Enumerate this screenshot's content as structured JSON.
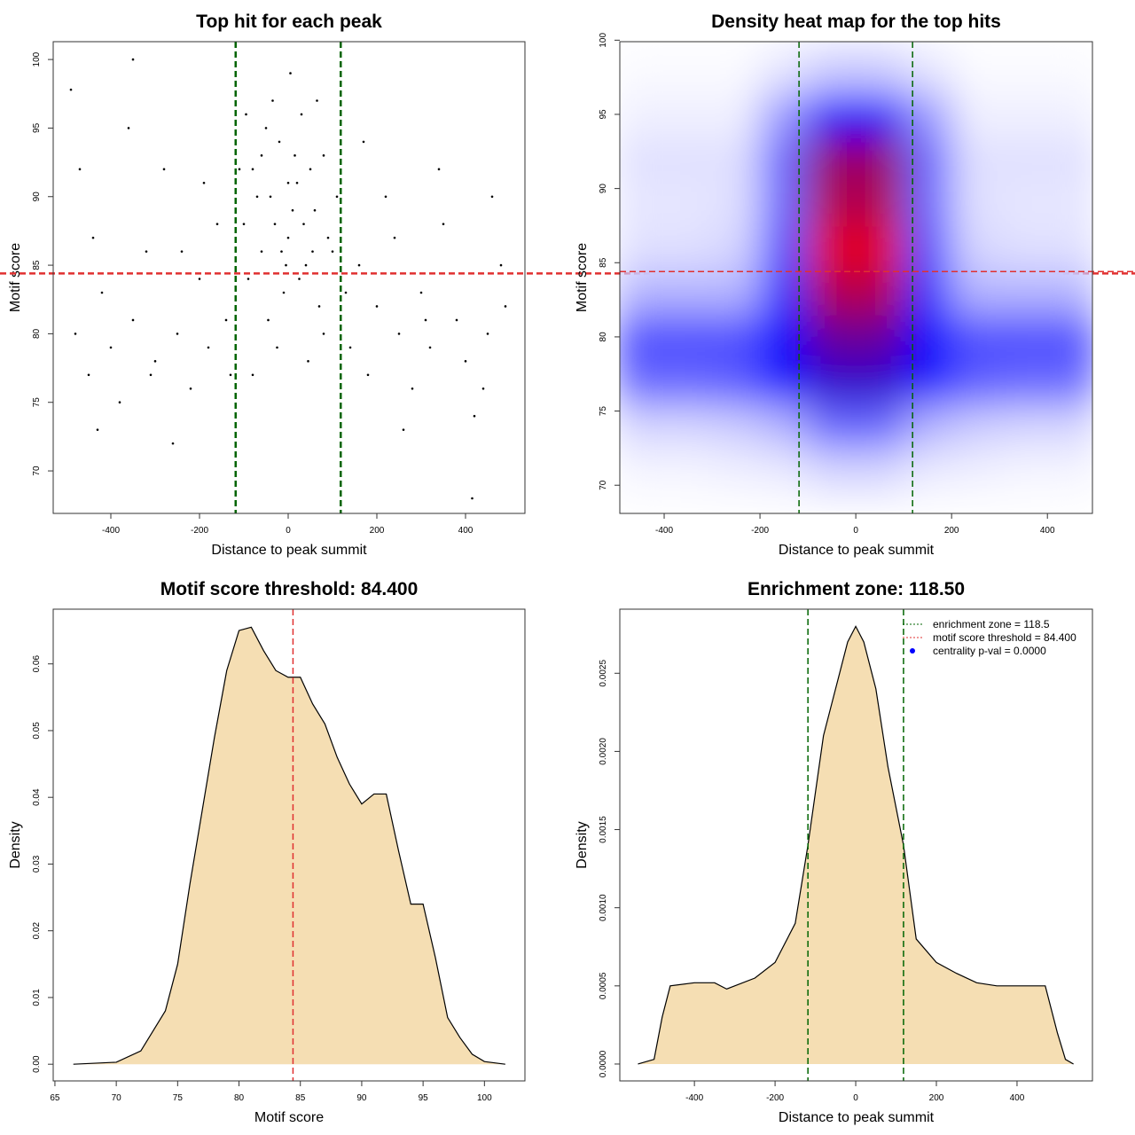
{
  "chart_data": [
    {
      "type": "scatter",
      "title": "Top hit for each peak",
      "xlabel": "Distance to peak summit",
      "ylabel": "Motif score",
      "x": [
        -100,
        -80,
        -60,
        -40,
        -20,
        0,
        20,
        40,
        60,
        80,
        100,
        -90,
        -50,
        -10,
        30,
        70,
        110,
        -110,
        -30,
        10,
        50,
        90,
        -70,
        -15,
        15,
        35,
        -45,
        65,
        -95,
        5,
        -25,
        45,
        0,
        -5,
        25,
        -60,
        80,
        -80,
        55,
        -35,
        -480,
        -450,
        -420,
        -400,
        -380,
        -350,
        -320,
        -300,
        -280,
        -250,
        -220,
        -200,
        -180,
        -160,
        -140,
        140,
        160,
        180,
        200,
        220,
        250,
        280,
        300,
        320,
        350,
        380,
        400,
        420,
        450,
        480,
        -470,
        -430,
        -360,
        -260,
        -190,
        170,
        260,
        340,
        440,
        490,
        -490,
        -350,
        415,
        -130,
        130,
        -240,
        240,
        -310,
        310,
        -440,
        460
      ],
      "values": [
        88,
        92,
        86,
        90,
        94,
        87,
        91,
        85,
        89,
        93,
        86,
        84,
        95,
        83,
        96,
        82,
        90,
        92,
        88,
        89,
        92,
        87,
        90,
        86,
        93,
        88,
        81,
        97,
        96,
        99,
        79,
        78,
        91,
        85,
        84,
        93,
        80,
        77,
        86,
        97,
        80,
        77,
        83,
        79,
        75,
        81,
        86,
        78,
        92,
        80,
        76,
        84,
        79,
        88,
        81,
        79,
        85,
        77,
        82,
        90,
        80,
        76,
        83,
        79,
        88,
        81,
        78,
        74,
        80,
        85,
        92,
        73,
        95,
        72,
        91,
        94,
        73,
        92,
        76,
        82,
        97.8,
        100,
        68,
        77,
        83,
        86,
        87,
        77,
        81,
        87,
        90
      ],
      "color": "#000000",
      "xlim": [
        -530,
        534
      ],
      "ylim": [
        66.9,
        101.3
      ],
      "xticks": [
        -400,
        -200,
        0,
        200,
        400
      ],
      "yticks": [
        70,
        75,
        80,
        85,
        90,
        95,
        100
      ],
      "vlines": [
        -118.5,
        118.5
      ],
      "vline_color": "#006400",
      "hline": 84.4,
      "hline_color": "#e03030"
    },
    {
      "type": "heatmap",
      "title": "Density heat map for the top hits",
      "xlabel": "Distance to peak summit",
      "ylabel": "Motif score",
      "x": [
        -450,
        -350,
        -250,
        -150,
        -50,
        50,
        150,
        250,
        350,
        450
      ],
      "y": [
        71,
        74,
        77,
        80,
        83,
        86,
        89,
        92,
        95,
        98
      ],
      "z": [
        [
          0.02,
          0.02,
          0.03,
          0.04,
          0.08,
          0.08,
          0.04,
          0.03,
          0.02,
          0.02
        ],
        [
          0.08,
          0.08,
          0.1,
          0.15,
          0.3,
          0.3,
          0.15,
          0.1,
          0.08,
          0.08
        ],
        [
          0.3,
          0.3,
          0.32,
          0.45,
          0.6,
          0.6,
          0.45,
          0.32,
          0.3,
          0.3
        ],
        [
          0.35,
          0.35,
          0.35,
          0.5,
          0.7,
          0.7,
          0.5,
          0.35,
          0.35,
          0.35
        ],
        [
          0.15,
          0.15,
          0.15,
          0.4,
          0.85,
          0.85,
          0.4,
          0.15,
          0.15,
          0.15
        ],
        [
          0.06,
          0.06,
          0.08,
          0.35,
          0.95,
          0.95,
          0.35,
          0.08,
          0.06,
          0.06
        ],
        [
          0.05,
          0.05,
          0.06,
          0.3,
          0.85,
          0.85,
          0.3,
          0.06,
          0.05,
          0.05
        ],
        [
          0.06,
          0.06,
          0.06,
          0.3,
          0.8,
          0.8,
          0.3,
          0.06,
          0.06,
          0.06
        ],
        [
          0.03,
          0.03,
          0.03,
          0.2,
          0.5,
          0.5,
          0.2,
          0.03,
          0.03,
          0.03
        ],
        [
          0.01,
          0.01,
          0.01,
          0.05,
          0.1,
          0.1,
          0.05,
          0.01,
          0.01,
          0.01
        ]
      ],
      "colors": [
        "#ffffff",
        "#0000ff",
        "#ff0000"
      ],
      "xlim": [
        -492.6,
        494
      ],
      "ylim": [
        68.1,
        99.9
      ],
      "xticks": [
        -400,
        -200,
        0,
        200,
        400
      ],
      "yticks": [
        70,
        75,
        80,
        85,
        90,
        95,
        100
      ],
      "vlines": [
        -118.5,
        118.5
      ],
      "vline_color": "#006400",
      "hline": 84.4,
      "hline_color": "#e03030"
    },
    {
      "type": "area",
      "title": "Motif score threshold: 84.400",
      "xlabel": "Motif score",
      "ylabel": "Density",
      "x": [
        66.5,
        70,
        72,
        74,
        75,
        76,
        77,
        78,
        79,
        80,
        81,
        82,
        83,
        84,
        85,
        86,
        87,
        88,
        89,
        90,
        91,
        92,
        93,
        94,
        95,
        96,
        97,
        98,
        99,
        100,
        101.7
      ],
      "values": [
        0,
        0.0003,
        0.002,
        0.008,
        0.015,
        0.027,
        0.038,
        0.049,
        0.059,
        0.065,
        0.0655,
        0.062,
        0.059,
        0.058,
        0.058,
        0.054,
        0.051,
        0.046,
        0.042,
        0.039,
        0.0405,
        0.0405,
        0.032,
        0.024,
        0.024,
        0.016,
        0.007,
        0.004,
        0.0015,
        0.0004,
        0
      ],
      "color": "#f5deb3",
      "xlim": [
        64.86,
        103.3
      ],
      "ylim": [
        -0.0025,
        0.0682
      ],
      "xticks": [
        65,
        70,
        75,
        80,
        85,
        90,
        95,
        100
      ],
      "yticks": [
        {
          "value": 0,
          "label": "0.00"
        },
        0.01,
        0.02,
        0.03,
        0.04,
        0.05,
        0.06
      ],
      "vlines": [
        84.4
      ],
      "vline_color": "#e03030"
    },
    {
      "type": "area",
      "title": "Enrichment zone: 118.50",
      "xlabel": "Distance to peak summit",
      "ylabel": "Density",
      "x": [
        -540,
        -500,
        -480,
        -460,
        -400,
        -350,
        -320,
        -250,
        -200,
        -150,
        -118.5,
        -80,
        -50,
        -20,
        0,
        20,
        50,
        80,
        118.5,
        150,
        200,
        250,
        300,
        350,
        400,
        450,
        470,
        500,
        520,
        540
      ],
      "values": [
        0,
        3e-05,
        0.0003,
        0.0005,
        0.00052,
        0.00052,
        0.00048,
        0.00055,
        0.00065,
        0.0009,
        0.0014,
        0.0021,
        0.0024,
        0.0027,
        0.0028,
        0.0027,
        0.0024,
        0.0019,
        0.0014,
        0.0008,
        0.00065,
        0.00058,
        0.00052,
        0.0005,
        0.0005,
        0.0005,
        0.0005,
        0.0002,
        3e-05,
        0
      ],
      "color": "#f5deb3",
      "xlim": [
        -585,
        587
      ],
      "ylim": [
        -0.000108,
        0.00291
      ],
      "xticks": [
        -400,
        -200,
        0,
        200,
        400
      ],
      "yticks": [
        {
          "value": 0,
          "label": "0.0000"
        },
        0.0005,
        {
          "value": 0.001,
          "label": "0.0010"
        },
        0.0015,
        {
          "value": 0.002,
          "label": "0.0020"
        },
        0.0025
      ],
      "vlines": [
        -118.5,
        118.5
      ],
      "vline_color": "#006400",
      "legend": {
        "position": "top-right",
        "entries": [
          {
            "label": "enrichment zone = 118.5",
            "color": "#006400",
            "style": "line"
          },
          {
            "label": "motif score threshold = 84.400",
            "color": "#e03030",
            "style": "line"
          },
          {
            "label": "centrality p-val = 0.0000",
            "color": "#0000ff",
            "style": "point"
          }
        ]
      }
    }
  ]
}
